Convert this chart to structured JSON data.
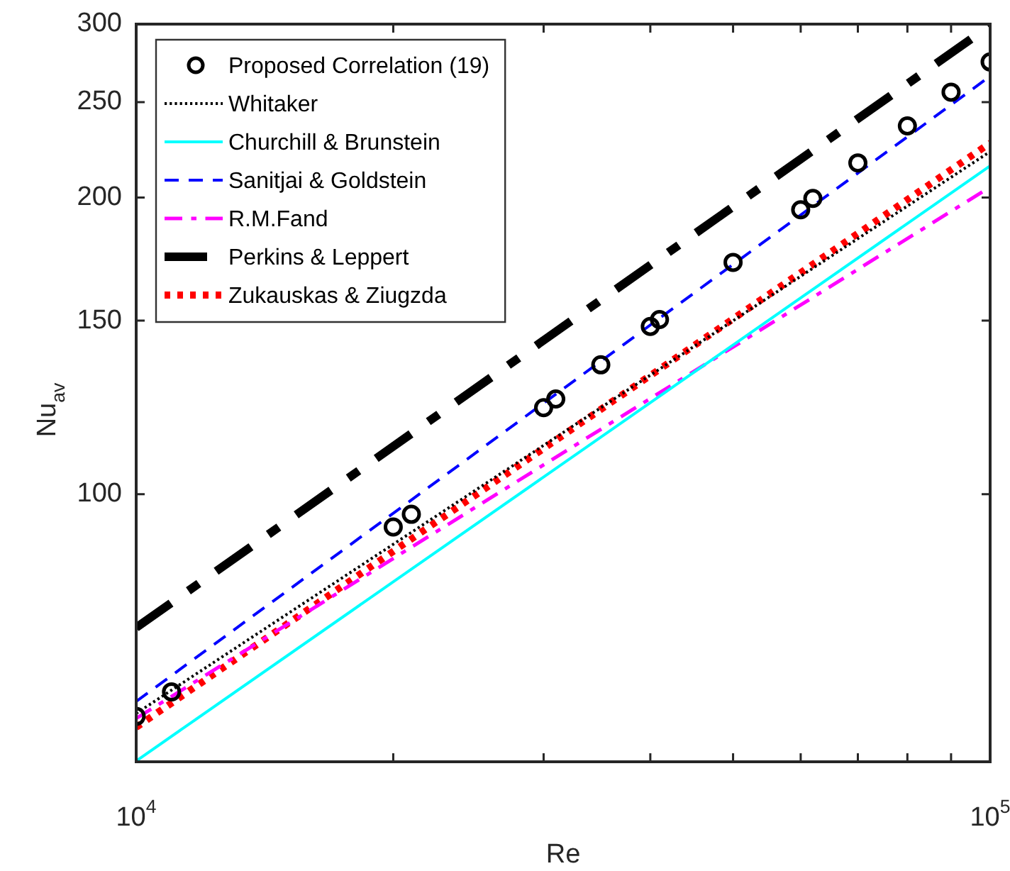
{
  "chart_data": {
    "type": "line",
    "xlabel": "Re",
    "ylabel": "Nu$_{av}$",
    "log": "xy",
    "grid": false,
    "legend": "top left",
    "xlim": [
      10000,
      100000
    ],
    "xticks": [
      {
        "value": 10000,
        "label": "10$^{4}$"
      },
      {
        "value": 20000,
        "label": null
      },
      {
        "value": 30000,
        "label": null
      },
      {
        "value": 40000,
        "label": null
      },
      {
        "value": 50000,
        "label": null
      },
      {
        "value": 60000,
        "label": null
      },
      {
        "value": 70000,
        "label": null
      },
      {
        "value": 80000,
        "label": null
      },
      {
        "value": 90000,
        "label": null
      },
      {
        "value": 100000,
        "label": "10$^{5}$"
      }
    ],
    "ylim": [
      53.5,
      300
    ],
    "yticks": [
      100,
      150,
      200,
      250,
      300
    ],
    "series": [
      {
        "name": "Proposed Correlation (19)",
        "type": "scatter",
        "marker": "circle",
        "color": "#000000",
        "x": [
          10000,
          11000,
          20000,
          21000,
          30000,
          31000,
          35000,
          40000,
          41000,
          50000,
          60000,
          62000,
          70000,
          80000,
          90000,
          100000
        ],
        "values": [
          59.5,
          63.0,
          92.6,
          95.4,
          122.4,
          124.9,
          135.3,
          148.0,
          150.4,
          171.9,
          194.4,
          199.6,
          216.9,
          236.5,
          255.9,
          274.6
        ]
      },
      {
        "name": "Whitaker",
        "color": "#000000",
        "line_style": "dotted",
        "x": [
          10000,
          100000
        ],
        "values": [
          59.9,
          222.7
        ]
      },
      {
        "name": "Churchill & Brunstein",
        "color": "#00ffff",
        "line_style": "solid",
        "x": [
          10000,
          100000
        ],
        "values": [
          53.6,
          215.4
        ]
      },
      {
        "name": "Sanitjai & Goldstein",
        "color": "#0000ff",
        "line_style": "dashed",
        "x": [
          10000,
          100000
        ],
        "values": [
          61.6,
          265.6
        ]
      },
      {
        "name": "R.M.Fand",
        "color": "#ff00ff",
        "line_style": "dashdot",
        "x": [
          10000,
          100000
        ],
        "values": [
          59.2,
          205.0
        ]
      },
      {
        "name": "Perkins & Leppert",
        "color": "#000000",
        "line_style": "dashdot",
        "x": [
          10000,
          100000
        ],
        "values": [
          73.2,
          299.0
        ]
      },
      {
        "name": "Zukauskas & Ziugzda",
        "color": "#ff0000",
        "line_style": "dotted",
        "x": [
          10000,
          100000
        ],
        "values": [
          58.0,
          227.2
        ]
      }
    ]
  }
}
